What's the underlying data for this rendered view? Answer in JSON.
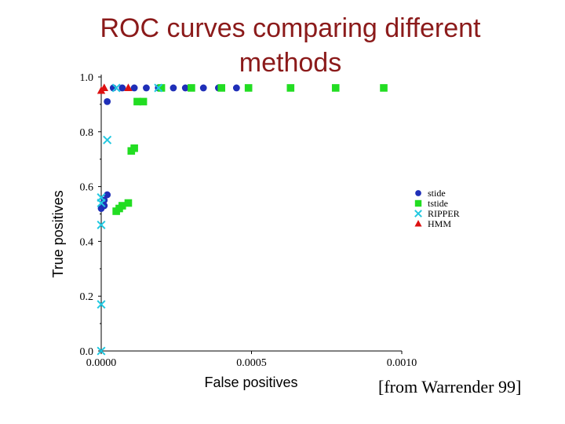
{
  "slide": {
    "title_line1": "ROC curves comparing different",
    "title_line2": "methods",
    "source_note": "[from Warrender 99]"
  },
  "chart_data": {
    "type": "scatter",
    "title": "ROC curves comparing different methods",
    "xlabel": "False positives",
    "ylabel": "True positives",
    "xlim": [
      0,
      0.001
    ],
    "ylim": [
      0,
      1.0
    ],
    "xticks": [
      0,
      0.0005,
      0.001
    ],
    "xtick_labels": [
      "0.0000",
      "0.0005",
      "0.0010"
    ],
    "yticks": [
      0,
      0.2,
      0.4,
      0.6,
      0.8,
      1.0
    ],
    "ytick_labels": [
      "0.0",
      "0.2",
      "0.4",
      "0.6",
      "0.8",
      "1.0"
    ],
    "legend_position": "right-middle",
    "series": [
      {
        "name": "stide",
        "marker": "circle",
        "color": "#1f2fb8",
        "points": [
          [
            0.0,
            0.52
          ],
          [
            1e-05,
            0.53
          ],
          [
            1e-05,
            0.55
          ],
          [
            2e-05,
            0.57
          ],
          [
            2e-05,
            0.91
          ],
          [
            4e-05,
            0.96
          ],
          [
            7e-05,
            0.96
          ],
          [
            0.00011,
            0.96
          ],
          [
            0.00015,
            0.96
          ],
          [
            0.00019,
            0.96
          ],
          [
            0.00024,
            0.96
          ],
          [
            0.00028,
            0.96
          ],
          [
            0.00034,
            0.96
          ],
          [
            0.00039,
            0.96
          ],
          [
            0.00045,
            0.96
          ]
        ]
      },
      {
        "name": "tstide",
        "marker": "square",
        "color": "#22dd22",
        "points": [
          [
            5e-05,
            0.51
          ],
          [
            6e-05,
            0.52
          ],
          [
            7e-05,
            0.53
          ],
          [
            9e-05,
            0.54
          ],
          [
            0.0001,
            0.73
          ],
          [
            0.00011,
            0.74
          ],
          [
            0.00012,
            0.91
          ],
          [
            0.00014,
            0.91
          ],
          [
            0.0002,
            0.96
          ],
          [
            0.0003,
            0.96
          ],
          [
            0.0004,
            0.96
          ],
          [
            0.00049,
            0.96
          ],
          [
            0.00063,
            0.96
          ],
          [
            0.00078,
            0.96
          ],
          [
            0.00094,
            0.96
          ]
        ]
      },
      {
        "name": "RIPPER",
        "marker": "x",
        "color": "#22c8e0",
        "points": [
          [
            0.0,
            0.0
          ],
          [
            0.0,
            0.17
          ],
          [
            0.0,
            0.46
          ],
          [
            0.0,
            0.54
          ],
          [
            0.0,
            0.56
          ],
          [
            2e-05,
            0.77
          ],
          [
            5e-05,
            0.96
          ],
          [
            0.00019,
            0.96
          ]
        ]
      },
      {
        "name": "HMM",
        "marker": "triangle",
        "color": "#dd1111",
        "points": [
          [
            0.0,
            0.95
          ],
          [
            1e-05,
            0.96
          ],
          [
            9e-05,
            0.96
          ]
        ]
      }
    ]
  }
}
